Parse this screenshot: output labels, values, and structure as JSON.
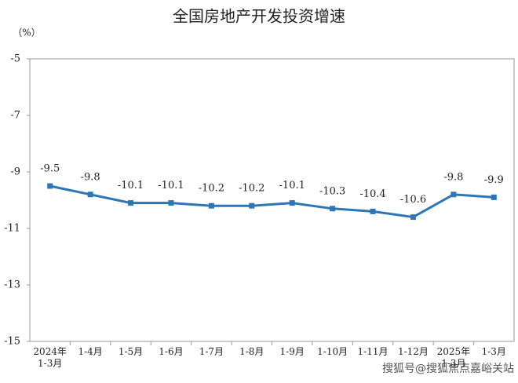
{
  "chart_data": {
    "type": "line",
    "title": "全国房地产开发投资增速",
    "y_label": "（%）",
    "categories": [
      "2024年\n1-3月",
      "1-4月",
      "1-5月",
      "1-6月",
      "1-7月",
      "1-8月",
      "1-9月",
      "1-10月",
      "1-11月",
      "1-12月",
      "2025年\n1-3月",
      "1-3月"
    ],
    "series": [
      {
        "name": "全国房地产开发投资增速",
        "color": "#2e75b6",
        "values": [
          -9.5,
          -9.8,
          -10.1,
          -10.1,
          -10.2,
          -10.2,
          -10.1,
          -10.3,
          -10.4,
          -10.6,
          -9.8,
          -9.9
        ]
      }
    ],
    "ylim": [
      -15,
      -5
    ],
    "yticks": [
      -5,
      -7,
      -9,
      -11,
      -13,
      -15
    ],
    "grid": false
  },
  "watermark": "搜狐号@搜狐焦点嘉峪关站"
}
